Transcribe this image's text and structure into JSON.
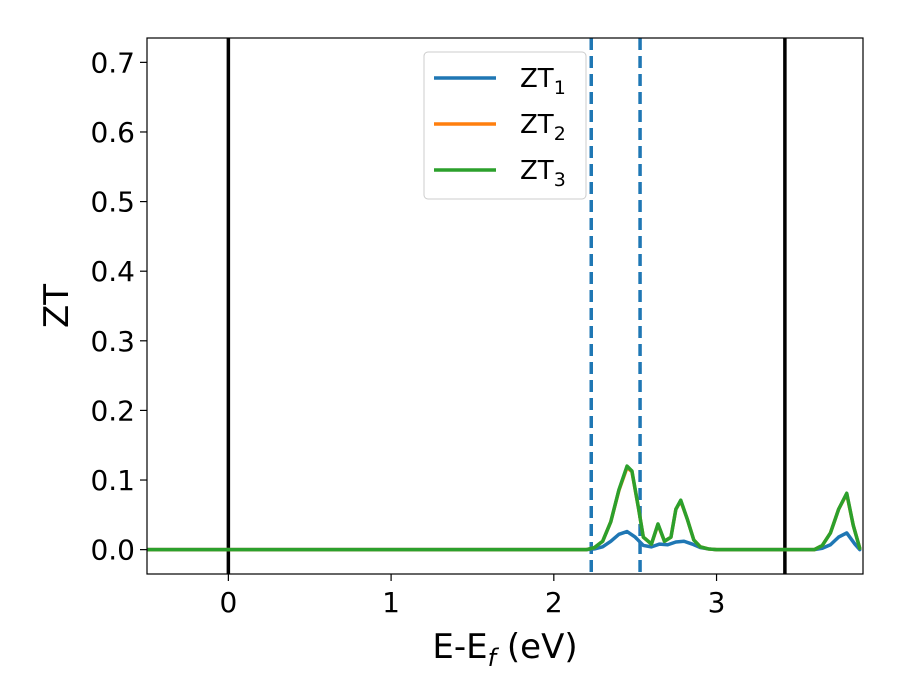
{
  "chart_data": {
    "type": "line",
    "title": "",
    "xlabel": {
      "main": "E-E",
      "sub": "f",
      "rest": " (eV)"
    },
    "ylabel": "ZT",
    "xlim": [
      -0.5,
      3.9
    ],
    "ylim": [
      -0.035,
      0.735
    ],
    "xticks": [
      0,
      1,
      2,
      3
    ],
    "yticks": [
      0.0,
      0.1,
      0.2,
      0.3,
      0.4,
      0.5,
      0.6,
      0.7
    ],
    "grid": false,
    "legend_position": "top-center",
    "colors": {
      "zt1": "#1f77b4",
      "zt2": "#ff7f0e",
      "zt3": "#2ca02c",
      "vline_solid": "#000000",
      "vline_dashed": "#1f77b4"
    },
    "vlines_solid": [
      0.0,
      3.42
    ],
    "vlines_dashed": [
      2.23,
      2.53
    ],
    "series": [
      {
        "name": "ZT",
        "name_sub": "1",
        "color": "#1f77b4",
        "x": [
          -0.5,
          2.2,
          2.25,
          2.3,
          2.35,
          2.4,
          2.45,
          2.5,
          2.55,
          2.6,
          2.65,
          2.7,
          2.75,
          2.8,
          2.85,
          2.9,
          2.95,
          3.0,
          3.4,
          3.6,
          3.65,
          3.7,
          3.75,
          3.8,
          3.85,
          3.88
        ],
        "y": [
          0.0,
          0.0,
          0.001,
          0.004,
          0.012,
          0.022,
          0.026,
          0.018,
          0.006,
          0.004,
          0.008,
          0.007,
          0.011,
          0.012,
          0.008,
          0.003,
          0.001,
          0.0,
          0.0,
          0.0,
          0.002,
          0.007,
          0.018,
          0.024,
          0.008,
          0.0
        ]
      },
      {
        "name": "ZT",
        "name_sub": "2",
        "color": "#ff7f0e",
        "x": [
          -0.5,
          2.2,
          2.25,
          2.3,
          2.35,
          2.4,
          2.45,
          2.48,
          2.52,
          2.55,
          2.6,
          2.64,
          2.68,
          2.72,
          2.75,
          2.78,
          2.82,
          2.86,
          2.9,
          2.95,
          3.0,
          3.4,
          3.6,
          3.65,
          3.7,
          3.75,
          3.8,
          3.84,
          3.88
        ],
        "y": [
          0.0,
          0.0,
          0.003,
          0.012,
          0.04,
          0.085,
          0.118,
          0.112,
          0.06,
          0.018,
          0.008,
          0.036,
          0.012,
          0.018,
          0.058,
          0.07,
          0.044,
          0.014,
          0.004,
          0.001,
          0.0,
          0.0,
          0.0,
          0.006,
          0.024,
          0.058,
          0.08,
          0.035,
          0.002
        ]
      },
      {
        "name": "ZT",
        "name_sub": "3",
        "color": "#2ca02c",
        "x": [
          -0.5,
          2.2,
          2.25,
          2.3,
          2.35,
          2.4,
          2.45,
          2.48,
          2.52,
          2.55,
          2.6,
          2.64,
          2.68,
          2.72,
          2.75,
          2.78,
          2.82,
          2.86,
          2.9,
          2.95,
          3.0,
          3.4,
          3.6,
          3.65,
          3.7,
          3.75,
          3.8,
          3.84,
          3.88
        ],
        "y": [
          0.0,
          0.0,
          0.003,
          0.012,
          0.04,
          0.086,
          0.12,
          0.113,
          0.06,
          0.018,
          0.008,
          0.037,
          0.012,
          0.018,
          0.058,
          0.071,
          0.044,
          0.014,
          0.004,
          0.001,
          0.0,
          0.0,
          0.0,
          0.006,
          0.024,
          0.058,
          0.081,
          0.035,
          0.002
        ]
      }
    ]
  }
}
